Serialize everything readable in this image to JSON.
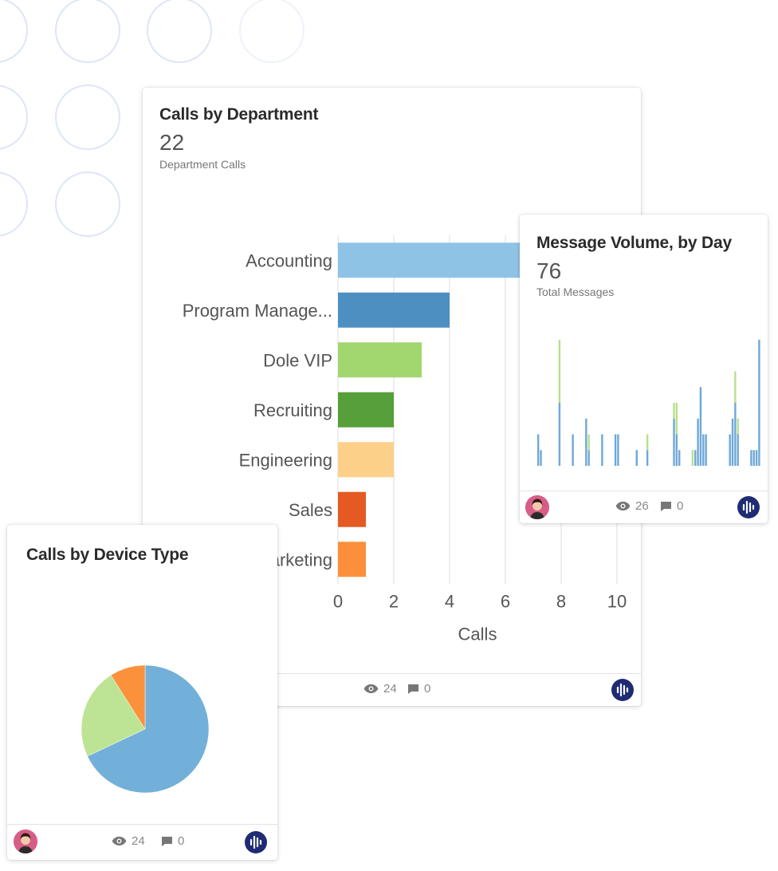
{
  "dept_card": {
    "title": "Calls by Department",
    "metric_value": "22",
    "metric_label": "Department Calls",
    "views": "24",
    "comments": "0"
  },
  "msg_card": {
    "title": "Message Volume, by Day",
    "metric_value": "76",
    "metric_label": "Total Messages",
    "views": "26",
    "comments": "0"
  },
  "device_card": {
    "title": "Calls by Device Type",
    "views": "24",
    "comments": "0"
  },
  "chart_data": [
    {
      "type": "bar",
      "orientation": "horizontal",
      "categories": [
        "Accounting",
        "Program Manage...",
        "Dole VIP",
        "Recruiting",
        "Engineering",
        "Sales",
        "Marketing"
      ],
      "values": [
        9,
        4,
        3,
        2,
        2,
        1,
        1
      ],
      "colors": [
        "#8fc3e6",
        "#4d8fc0",
        "#a2d76f",
        "#579f3a",
        "#fdd089",
        "#e45a22",
        "#fc8f3b"
      ],
      "xlabel": "Calls",
      "xlim": [
        0,
        10
      ],
      "xticks": [
        0,
        2,
        4,
        6,
        8,
        10
      ],
      "grid": true
    },
    {
      "type": "bar",
      "stacked": true,
      "series": [
        {
          "color": "#6fa8d7",
          "values": [
            2,
            1,
            0,
            0,
            0,
            0,
            0,
            0,
            4,
            0,
            0,
            0,
            0,
            2,
            0,
            0,
            0,
            0,
            3,
            1,
            0,
            0,
            0,
            0,
            2,
            0,
            0,
            0,
            0,
            2,
            2,
            0,
            0,
            0,
            0,
            0,
            0,
            1,
            0,
            0,
            0,
            1,
            0,
            0,
            0,
            0,
            0,
            0,
            0,
            0,
            0,
            3,
            2,
            1,
            0,
            0,
            0,
            0,
            0,
            1,
            3,
            5,
            2,
            2,
            0,
            0,
            0,
            0,
            0,
            0,
            0,
            0,
            2,
            3,
            4,
            2,
            0,
            0,
            0,
            0,
            1,
            1,
            1,
            8
          ]
        },
        {
          "color": "#b7e08d",
          "values": [
            0,
            0,
            0,
            0,
            0,
            0,
            0,
            0,
            4,
            0,
            0,
            0,
            0,
            0,
            0,
            0,
            0,
            0,
            0,
            1,
            0,
            0,
            0,
            0,
            0,
            0,
            0,
            0,
            0,
            0,
            0,
            0,
            0,
            0,
            0,
            0,
            0,
            0,
            0,
            0,
            0,
            1,
            0,
            0,
            0,
            0,
            0,
            0,
            0,
            0,
            0,
            1,
            2,
            0,
            0,
            0,
            0,
            0,
            1,
            0,
            0,
            0,
            0,
            0,
            0,
            0,
            0,
            0,
            0,
            0,
            0,
            0,
            0,
            0,
            2,
            1,
            0,
            0,
            0,
            0,
            0,
            0,
            0,
            0
          ]
        }
      ]
    },
    {
      "type": "pie",
      "values": [
        68,
        23,
        9
      ],
      "colors": [
        "#73b0d9",
        "#bde494",
        "#fb913b"
      ]
    }
  ]
}
